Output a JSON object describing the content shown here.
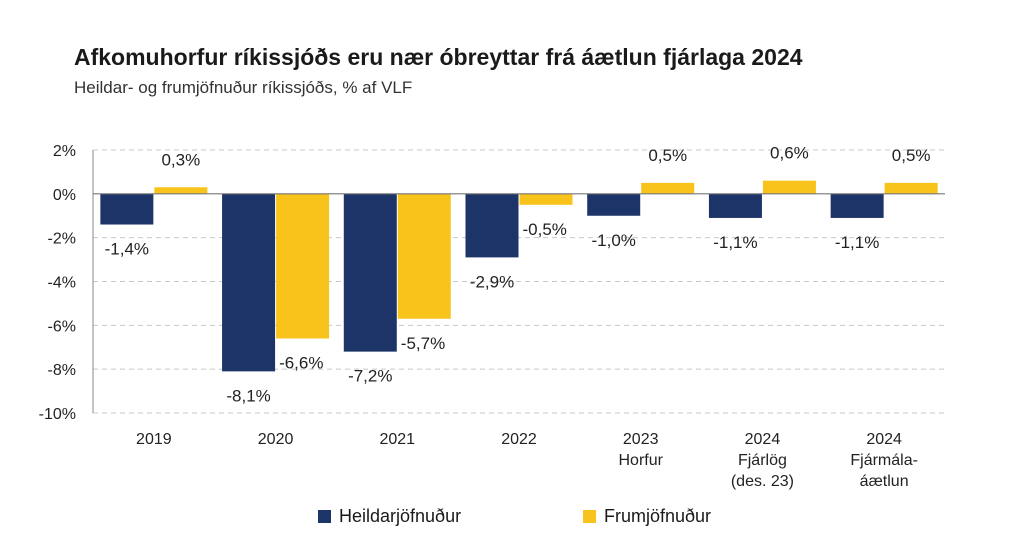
{
  "title": "Afkomuhorfur ríkissjóðs eru nær óbreyttar frá áætlun fjárlaga 2024",
  "subtitle": "Heildar- og frumjöfnuður ríkissjóðs, % af VLF",
  "colors": {
    "heildar": "#1d3468",
    "frum": "#f8c31b"
  },
  "legend": {
    "heildar": "Heildarjöfnuður",
    "frum": "Frumjöfnuður"
  },
  "chart_data": {
    "type": "bar",
    "categories": [
      [
        "2019"
      ],
      [
        "2020"
      ],
      [
        "2021"
      ],
      [
        "2022"
      ],
      [
        "2023",
        "Horfur"
      ],
      [
        "2024",
        "Fjárlög",
        "(des. 23)"
      ],
      [
        "2024",
        "Fjármála-",
        "áætlun"
      ]
    ],
    "series": [
      {
        "name": "Heildarjöfnuður",
        "values": [
          -1.4,
          -8.1,
          -7.2,
          -2.9,
          -1.0,
          -1.1,
          -1.1
        ],
        "labels": [
          "-1,4%",
          "-8,1%",
          "-7,2%",
          "-2,9%",
          "-1,0%",
          "-1,1%",
          "-1,1%"
        ]
      },
      {
        "name": "Frumjöfnuður",
        "values": [
          0.3,
          -6.6,
          -5.7,
          -0.5,
          0.5,
          0.6,
          0.5
        ],
        "labels": [
          "0,3%",
          "-6,6%",
          "-5,7%",
          "-0,5%",
          "0,5%",
          "0,6%",
          "0,5%"
        ]
      }
    ],
    "yticks": [
      2,
      0,
      -2,
      -4,
      -6,
      -8,
      -10
    ],
    "ytick_labels": [
      "2%",
      "0%",
      "-2%",
      "-4%",
      "-6%",
      "-8%",
      "-10%"
    ],
    "ylim": [
      -10,
      2
    ],
    "grid": true,
    "legend_position": "bottom"
  }
}
